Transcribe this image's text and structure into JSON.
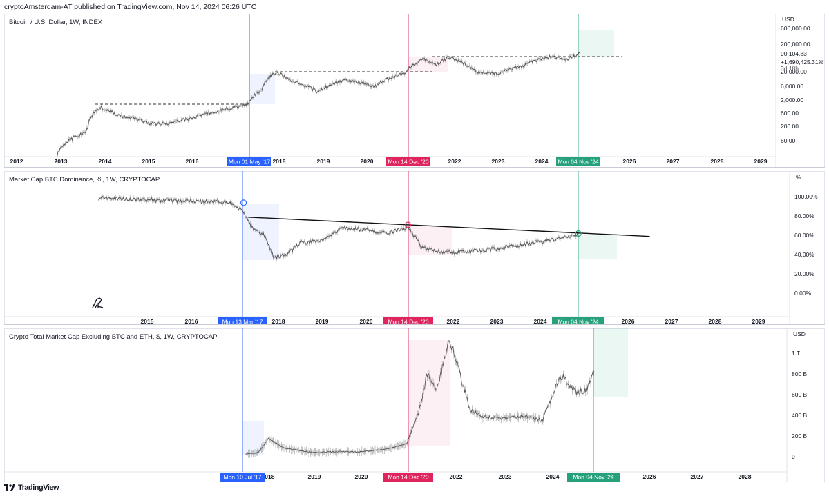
{
  "header": {
    "text": "cryptoAmsterdam-AT published on TradingView.com, Nov 14, 2024 06:26 UTC"
  },
  "footer": {
    "logo_icon": "tradingview-logo-icon",
    "brand": "TradingView"
  },
  "colors": {
    "blue": "#2962ff",
    "red": "#e0245e",
    "green": "#26a17b",
    "candle": "#555555"
  },
  "chart_data": [
    {
      "type": "line",
      "title": "Bitcoin / U.S. Dollar, 1W, INDEX",
      "currency": "USD",
      "y_scale": "log",
      "y_ticks": [
        "600,000.00",
        "200,000.00",
        "90,104.83",
        "20,000.00",
        "6,000.00",
        "2,000.00",
        "600.00",
        "200.00",
        "60.00"
      ],
      "last_price": "90,104.83",
      "change": "+1,690,425.31%",
      "countdown": "3d 18h",
      "x_ticks": [
        "2012",
        "2013",
        "2014",
        "2015",
        "2016",
        "2018",
        "2019",
        "2020",
        "2022",
        "2023",
        "2024",
        "2026",
        "2027",
        "2028",
        "2029"
      ],
      "markers": [
        {
          "label": "Mon 01 May '17",
          "color": "blue"
        },
        {
          "label": "Mon 14 Dec '20",
          "color": "red"
        },
        {
          "label": "Mon 04 Nov '24",
          "color": "green"
        }
      ],
      "series": [
        {
          "x": [
            2012.9,
            2013.2,
            2013.6,
            2013.9,
            2014.3,
            2014.7,
            2015.0,
            2015.5,
            2016.0,
            2016.5,
            2017.0,
            2017.3,
            2017.6,
            2017.96,
            2018.3,
            2018.9,
            2019.5,
            2020.2,
            2020.9,
            2021.3,
            2021.6,
            2021.9,
            2022.5,
            2023.0,
            2023.5,
            2024.2,
            2024.6,
            2024.87
          ],
          "y": [
            12,
            60,
            120,
            1000,
            500,
            400,
            250,
            250,
            400,
            650,
            1000,
            1300,
            4000,
            19000,
            9000,
            3500,
            10000,
            6000,
            18000,
            60000,
            35000,
            67000,
            20000,
            17000,
            30000,
            70000,
            60000,
            90000
          ]
        }
      ]
    },
    {
      "type": "line",
      "title": "Market Cap BTC Dominance, %, 1W, CRYPTOCAP",
      "currency": "%",
      "y_ticks": [
        "100.00%",
        "80.00%",
        "60.00%",
        "40.00%",
        "20.00%",
        "0.00%"
      ],
      "x_ticks": [
        "2015",
        "2016",
        "2018",
        "2019",
        "2020",
        "2022",
        "2023",
        "2024",
        "2026",
        "2027",
        "2028",
        "2029"
      ],
      "markers": [
        {
          "label": "Mon 13 Mar '17",
          "color": "blue"
        },
        {
          "label": "Mon 14 Dec '20",
          "color": "red"
        },
        {
          "label": "Mon 04 Nov '24",
          "color": "green"
        }
      ],
      "series": [
        {
          "x": [
            2013.9,
            2015.0,
            2016.0,
            2016.8,
            2017.2,
            2017.4,
            2017.7,
            2017.9,
            2018.2,
            2018.5,
            2019.0,
            2019.5,
            2020.0,
            2020.5,
            2020.96,
            2021.3,
            2021.6,
            2022.0,
            2022.5,
            2023.0,
            2023.5,
            2024.0,
            2024.5,
            2024.87
          ],
          "y": [
            99,
            97,
            96,
            95,
            86,
            68,
            60,
            37,
            40,
            52,
            55,
            68,
            66,
            62,
            69,
            47,
            43,
            42,
            44,
            46,
            50,
            53,
            57,
            61
          ]
        }
      ],
      "trendline": {
        "x": [
          2017.3,
          2026.5
        ],
        "y": [
          79,
          59
        ]
      }
    },
    {
      "type": "line",
      "title": "Crypto Total Market Cap Excluding BTC and ETH, $, 1W, CRYPTOCAP",
      "currency": "USD",
      "y_ticks": [
        "1 T",
        "800 B",
        "600 B",
        "400 B",
        "200 B",
        "0"
      ],
      "x_ticks": [
        "2018",
        "2019",
        "2020",
        "2022",
        "2023",
        "2024",
        "2026",
        "2027",
        "2028"
      ],
      "markers": [
        {
          "label": "Mon 10 Jul '17",
          "color": "blue"
        },
        {
          "label": "Mon 14 Dec '20",
          "color": "red"
        },
        {
          "label": "Mon 04 Nov '24",
          "color": "green"
        }
      ],
      "series": [
        {
          "x": [
            2017.52,
            2017.8,
            2018.03,
            2018.3,
            2018.7,
            2019.0,
            2019.5,
            2020.0,
            2020.5,
            2020.96,
            2021.2,
            2021.4,
            2021.6,
            2021.87,
            2022.0,
            2022.3,
            2022.6,
            2023.0,
            2023.4,
            2023.8,
            2024.0,
            2024.2,
            2024.5,
            2024.7,
            2024.87
          ],
          "y": [
            30,
            40,
            180,
            90,
            60,
            40,
            50,
            45,
            70,
            120,
            400,
            800,
            650,
            1120,
            950,
            450,
            380,
            370,
            390,
            350,
            600,
            780,
            620,
            640,
            820
          ]
        }
      ]
    }
  ]
}
